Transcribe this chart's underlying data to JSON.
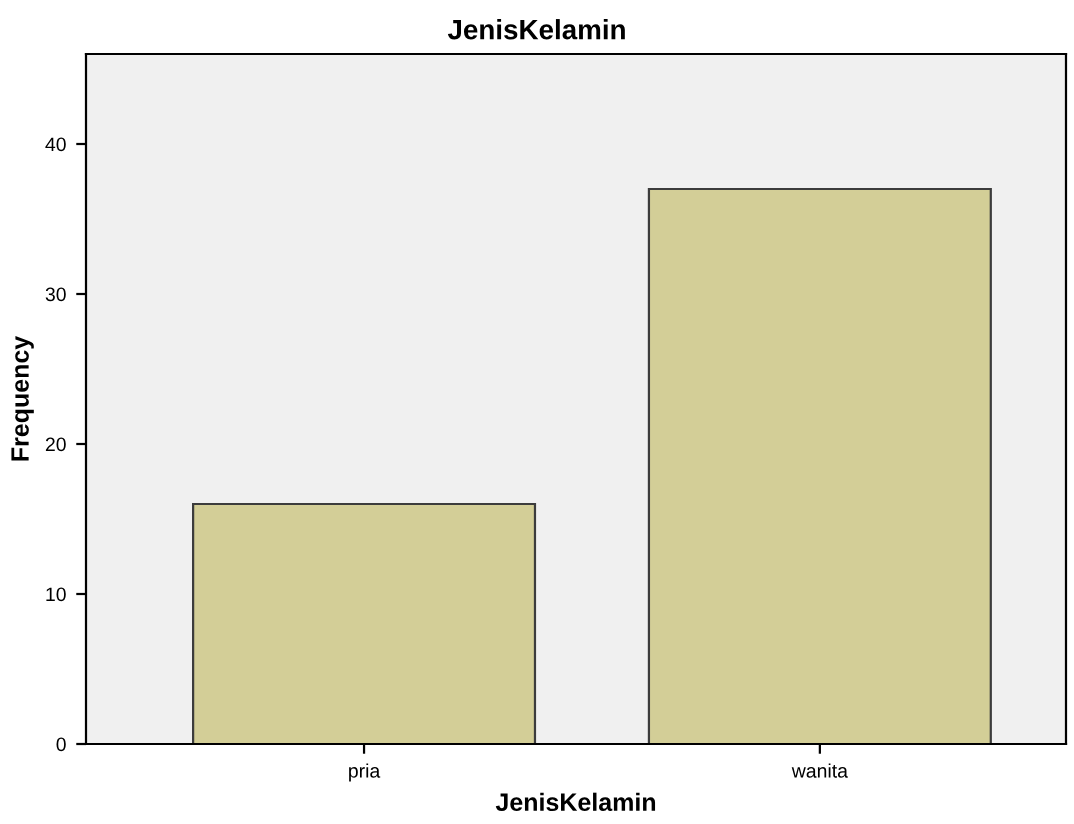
{
  "chart_data": {
    "type": "bar",
    "title": "JenisKelamin",
    "xlabel": "JenisKelamin",
    "ylabel": "Frequency",
    "categories": [
      "pria",
      "wanita"
    ],
    "values": [
      16,
      37
    ],
    "color": "#d3ce97",
    "ylim": [
      0,
      46
    ],
    "yticks": [
      0,
      10,
      20,
      30,
      40
    ],
    "grid": false,
    "legend": false
  }
}
